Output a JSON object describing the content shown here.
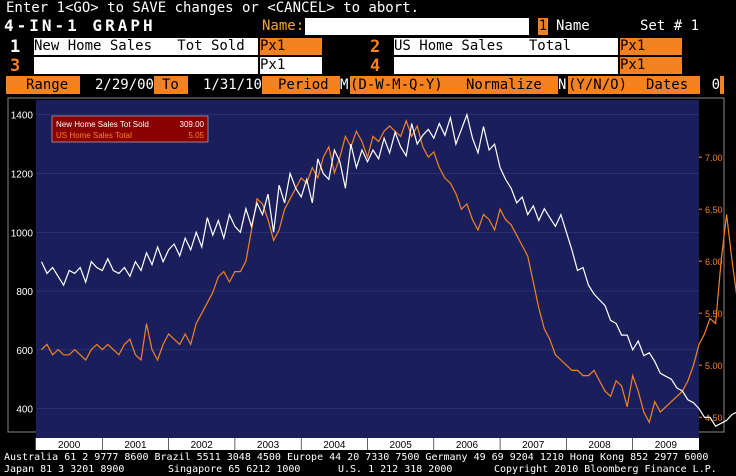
{
  "header": {
    "status_line": "Enter 1<GO> to SAVE changes or <CANCEL> to abort.",
    "app_title": "4-IN-1 GRAPH",
    "name_label": "Name:",
    "name_value": "",
    "page_number": "1",
    "page_name_label": "Name",
    "set_label": "Set # 1"
  },
  "series_slots": [
    {
      "num": "1",
      "ticker": "New Home Sales   Tot Sold",
      "field": "Px1"
    },
    {
      "num": "2",
      "ticker": "US Home Sales   Total",
      "field": "Px1"
    },
    {
      "num": "3",
      "ticker": "",
      "field": "Px1"
    },
    {
      "num": "4",
      "ticker": "",
      "field": "Px1"
    }
  ],
  "range_bar": {
    "range_label": "Range",
    "start": "2/29/00",
    "to_label": "To",
    "end": "1/31/10",
    "period_label": "Period",
    "period_value": "M",
    "period_options": "(D-W-M-Q-Y)",
    "normalize_label": "Normalize",
    "normalize_value": "N",
    "normalize_options": "(Y/N/O)",
    "dates_label": "Dates",
    "dates_value": "0"
  },
  "colors": {
    "plot_bg": "#1a1f5c",
    "series1": "#ffffff",
    "series2": "#f58220",
    "legend_bg": "#8b0000"
  },
  "chart_data": {
    "type": "line",
    "x_axis": {
      "categories": [
        "2000",
        "2001",
        "2002",
        "2003",
        "2004",
        "2005",
        "2006",
        "2007",
        "2008",
        "2009"
      ]
    },
    "y_left": {
      "range": [
        300,
        1450
      ],
      "ticks": [
        "400",
        "600",
        "800",
        "1000",
        "1200",
        "1400"
      ]
    },
    "y_right": {
      "range": [
        4.3,
        7.55
      ],
      "ticks": [
        "4.50",
        "5.00",
        "5.50",
        "6.00",
        "6.50",
        "7.00"
      ]
    },
    "legend": {
      "position": "top-left",
      "entries": [
        {
          "label": "New Home Sales   Tot Sold",
          "value": "309.00"
        },
        {
          "label": "US Home Sales   Total",
          "value": "5.05"
        }
      ]
    },
    "series": [
      {
        "name": "New Home Sales   Tot Sold",
        "axis": "left",
        "start": "2000-02",
        "freq": "monthly",
        "values": [
          900,
          860,
          880,
          850,
          820,
          870,
          860,
          880,
          830,
          900,
          880,
          870,
          910,
          870,
          860,
          880,
          850,
          900,
          870,
          930,
          890,
          950,
          900,
          940,
          960,
          920,
          980,
          940,
          1000,
          950,
          1050,
          990,
          1040,
          980,
          1060,
          1020,
          1000,
          1080,
          1020,
          1100,
          1060,
          1130,
          1000,
          1160,
          1100,
          1200,
          1150,
          1120,
          1180,
          1100,
          1250,
          1200,
          1180,
          1280,
          1240,
          1150,
          1300,
          1220,
          1280,
          1240,
          1280,
          1250,
          1320,
          1270,
          1340,
          1290,
          1260,
          1370,
          1300,
          1330,
          1350,
          1320,
          1370,
          1330,
          1390,
          1300,
          1350,
          1400,
          1320,
          1270,
          1360,
          1280,
          1300,
          1220,
          1180,
          1150,
          1100,
          1120,
          1060,
          1090,
          1040,
          1080,
          1050,
          1020,
          1060,
          1000,
          940,
          870,
          880,
          820,
          790,
          770,
          750,
          700,
          690,
          650,
          650,
          600,
          630,
          580,
          590,
          560,
          520,
          510,
          500,
          470,
          460,
          430,
          420,
          400,
          370,
          370,
          340,
          350,
          360,
          380,
          390,
          410,
          400,
          380,
          370,
          330,
          309
        ]
      },
      {
        "name": "US Home Sales   Total",
        "axis": "right",
        "start": "2000-02",
        "freq": "monthly",
        "values": [
          5.15,
          5.2,
          5.1,
          5.15,
          5.1,
          5.1,
          5.15,
          5.1,
          5.05,
          5.15,
          5.2,
          5.15,
          5.2,
          5.15,
          5.1,
          5.2,
          5.25,
          5.1,
          5.05,
          5.4,
          5.15,
          5.05,
          5.2,
          5.3,
          5.25,
          5.2,
          5.3,
          5.2,
          5.4,
          5.5,
          5.6,
          5.7,
          5.85,
          5.9,
          5.8,
          5.9,
          5.9,
          6.0,
          6.3,
          6.6,
          6.55,
          6.4,
          6.2,
          6.3,
          6.5,
          6.6,
          6.7,
          6.8,
          6.75,
          6.9,
          6.8,
          7.0,
          7.1,
          6.85,
          7.0,
          7.2,
          7.1,
          7.25,
          7.15,
          7.0,
          7.2,
          7.15,
          7.25,
          7.3,
          7.25,
          7.2,
          7.35,
          7.2,
          7.3,
          7.1,
          7.0,
          7.05,
          6.9,
          6.8,
          6.75,
          6.65,
          6.5,
          6.55,
          6.4,
          6.3,
          6.45,
          6.4,
          6.3,
          6.5,
          6.4,
          6.35,
          6.25,
          6.15,
          6.05,
          5.8,
          5.55,
          5.35,
          5.25,
          5.1,
          5.05,
          5.0,
          4.95,
          4.95,
          4.9,
          4.9,
          4.95,
          4.85,
          4.75,
          4.7,
          4.85,
          4.8,
          4.6,
          4.9,
          4.75,
          4.55,
          4.45,
          4.65,
          4.55,
          4.6,
          4.65,
          4.7,
          4.75,
          4.85,
          5.0,
          5.2,
          5.3,
          5.45,
          5.4,
          6.0,
          6.45,
          6.0,
          5.6,
          5.3,
          5.05
        ]
      }
    ]
  },
  "footer": {
    "line1": "Australia 61 2 9777 8600 Brazil 5511 3048 4500 Europe 44 20 7330 7500 Germany 49 69 9204 1210 Hong Kong 852 2977 6000",
    "line2_left": "Japan 81 3 3201 8900",
    "line2_mid1": "Singapore 65 6212 1000",
    "line2_mid2": "U.S. 1 212 318 2000",
    "line2_right": "Copyright 2010 Bloomberg Finance L.P."
  }
}
